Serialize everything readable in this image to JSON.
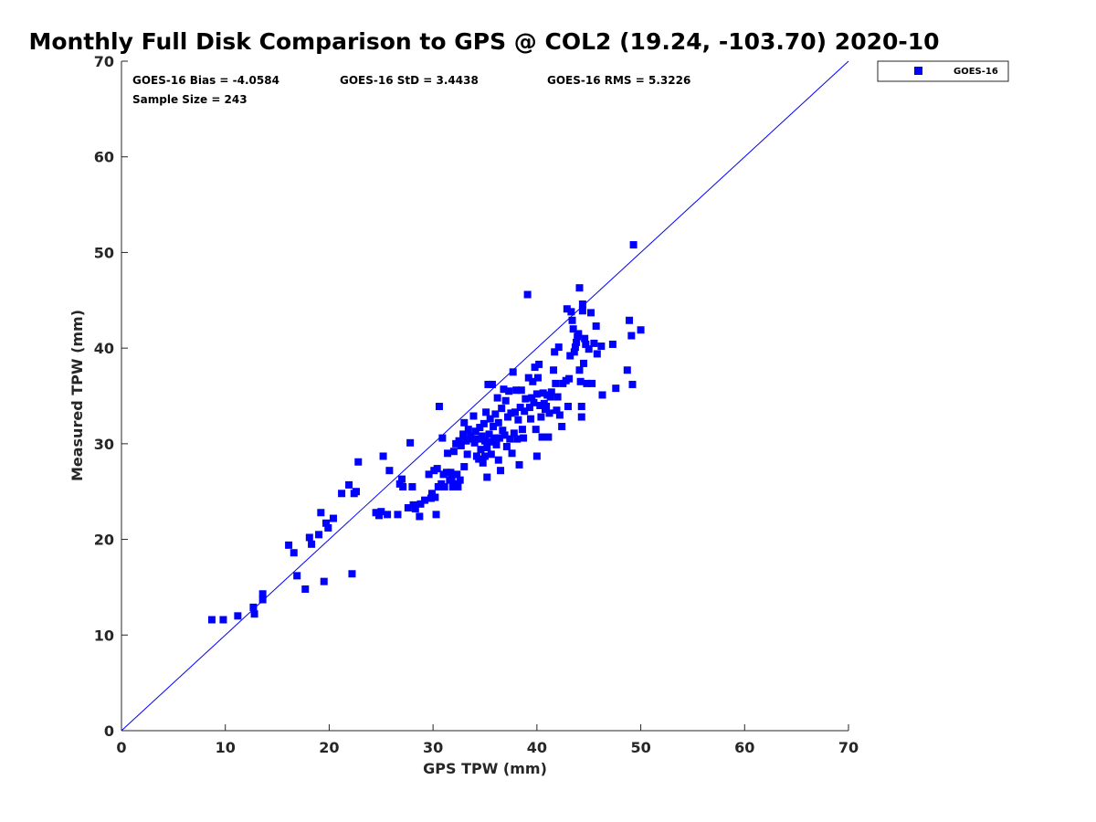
{
  "chart_data": {
    "type": "scatter",
    "title": "Monthly Full Disk Comparison to GPS @ COL2 (19.24, -103.70) 2020-10",
    "xlabel": "GPS TPW (mm)",
    "ylabel": "Measured TPW (mm)",
    "xlim": [
      0,
      70
    ],
    "ylim": [
      0,
      70
    ],
    "xticks": [
      0,
      10,
      20,
      30,
      40,
      50,
      60,
      70
    ],
    "yticks": [
      0,
      10,
      20,
      30,
      40,
      50,
      60,
      70
    ],
    "grid": false,
    "legend_position": "outside-top-right",
    "reference_line": {
      "x": [
        0,
        70
      ],
      "y": [
        0,
        70
      ],
      "color": "#0000ff"
    },
    "stats": {
      "bias": "GOES-16 Bias = -4.0584",
      "std": "GOES-16 StD = 3.4438",
      "rms": "GOES-16 RMS = 5.3226",
      "sample": "Sample Size = 243"
    },
    "series": [
      {
        "name": "GOES-16",
        "color": "#0000ff",
        "marker": "square",
        "points": [
          [
            8.7,
            11.6
          ],
          [
            9.8,
            11.6
          ],
          [
            11.2,
            12.0
          ],
          [
            12.7,
            12.9
          ],
          [
            12.8,
            12.2
          ],
          [
            13.6,
            13.7
          ],
          [
            13.6,
            14.3
          ],
          [
            16.1,
            19.4
          ],
          [
            16.6,
            18.6
          ],
          [
            16.9,
            16.2
          ],
          [
            17.7,
            14.8
          ],
          [
            18.1,
            20.2
          ],
          [
            18.3,
            19.5
          ],
          [
            19.0,
            20.5
          ],
          [
            19.2,
            22.8
          ],
          [
            19.5,
            15.6
          ],
          [
            19.7,
            21.7
          ],
          [
            19.9,
            21.2
          ],
          [
            20.4,
            22.2
          ],
          [
            21.2,
            24.8
          ],
          [
            21.9,
            25.7
          ],
          [
            22.2,
            16.4
          ],
          [
            22.4,
            24.8
          ],
          [
            22.6,
            25.0
          ],
          [
            22.8,
            28.1
          ],
          [
            24.5,
            22.8
          ],
          [
            24.8,
            22.5
          ],
          [
            25.0,
            22.9
          ],
          [
            25.2,
            28.7
          ],
          [
            25.6,
            22.6
          ],
          [
            25.8,
            27.2
          ],
          [
            26.6,
            22.6
          ],
          [
            26.8,
            25.8
          ],
          [
            27.0,
            26.3
          ],
          [
            27.1,
            25.5
          ],
          [
            27.6,
            23.3
          ],
          [
            27.8,
            30.1
          ],
          [
            28.0,
            25.5
          ],
          [
            28.1,
            23.6
          ],
          [
            28.3,
            23.2
          ],
          [
            28.7,
            22.4
          ],
          [
            28.8,
            23.7
          ],
          [
            29.2,
            24.1
          ],
          [
            29.6,
            26.8
          ],
          [
            29.8,
            24.3
          ],
          [
            29.9,
            24.8
          ],
          [
            30.1,
            27.2
          ],
          [
            30.2,
            24.4
          ],
          [
            30.3,
            22.6
          ],
          [
            30.4,
            27.4
          ],
          [
            30.5,
            25.5
          ],
          [
            30.6,
            33.9
          ],
          [
            30.8,
            25.8
          ],
          [
            30.9,
            30.6
          ],
          [
            31.0,
            26.8
          ],
          [
            31.1,
            25.5
          ],
          [
            31.3,
            27.0
          ],
          [
            31.4,
            29.0
          ],
          [
            31.6,
            26.2
          ],
          [
            31.7,
            27.0
          ],
          [
            31.8,
            26.5
          ],
          [
            31.9,
            25.5
          ],
          [
            32.0,
            29.2
          ],
          [
            32.1,
            25.8
          ],
          [
            32.2,
            30.0
          ],
          [
            32.3,
            26.8
          ],
          [
            32.4,
            25.5
          ],
          [
            32.5,
            30.3
          ],
          [
            32.6,
            26.2
          ],
          [
            32.7,
            29.8
          ],
          [
            32.9,
            31.0
          ],
          [
            33.0,
            32.2
          ],
          [
            33.0,
            27.6
          ],
          [
            33.2,
            30.3
          ],
          [
            33.3,
            28.9
          ],
          [
            33.4,
            31.5
          ],
          [
            33.6,
            30.8
          ],
          [
            33.7,
            30.5
          ],
          [
            33.9,
            32.9
          ],
          [
            34.0,
            30.1
          ],
          [
            34.1,
            31.3
          ],
          [
            34.2,
            28.7
          ],
          [
            34.3,
            30.5
          ],
          [
            34.4,
            28.4
          ],
          [
            34.5,
            31.7
          ],
          [
            34.6,
            29.4
          ],
          [
            34.7,
            30.8
          ],
          [
            34.8,
            28.0
          ],
          [
            34.9,
            32.1
          ],
          [
            35.0,
            30.3
          ],
          [
            35.0,
            28.7
          ],
          [
            35.1,
            33.3
          ],
          [
            35.2,
            29.6
          ],
          [
            35.2,
            26.5
          ],
          [
            35.3,
            36.2
          ],
          [
            35.4,
            31.0
          ],
          [
            35.5,
            32.6
          ],
          [
            35.6,
            28.9
          ],
          [
            35.6,
            30.2
          ],
          [
            35.7,
            36.2
          ],
          [
            35.8,
            31.8
          ],
          [
            35.9,
            30.6
          ],
          [
            36.0,
            33.1
          ],
          [
            36.1,
            29.9
          ],
          [
            36.2,
            34.8
          ],
          [
            36.3,
            28.3
          ],
          [
            36.3,
            32.2
          ],
          [
            36.4,
            30.6
          ],
          [
            36.5,
            27.2
          ],
          [
            36.6,
            33.7
          ],
          [
            36.7,
            31.4
          ],
          [
            36.8,
            35.7
          ],
          [
            36.9,
            30.9
          ],
          [
            37.0,
            34.5
          ],
          [
            37.1,
            29.7
          ],
          [
            37.2,
            32.8
          ],
          [
            37.3,
            35.5
          ],
          [
            37.4,
            30.5
          ],
          [
            37.5,
            33.2
          ],
          [
            37.6,
            29.0
          ],
          [
            37.7,
            37.5
          ],
          [
            37.8,
            31.1
          ],
          [
            37.9,
            33.3
          ],
          [
            38.0,
            35.6
          ],
          [
            38.1,
            30.5
          ],
          [
            38.2,
            32.5
          ],
          [
            38.3,
            27.8
          ],
          [
            38.4,
            33.8
          ],
          [
            38.5,
            35.6
          ],
          [
            38.6,
            31.5
          ],
          [
            38.7,
            30.6
          ],
          [
            38.8,
            33.4
          ],
          [
            38.9,
            34.7
          ],
          [
            39.1,
            45.6
          ],
          [
            39.2,
            36.9
          ],
          [
            39.3,
            33.8
          ],
          [
            39.4,
            32.6
          ],
          [
            39.5,
            34.8
          ],
          [
            39.6,
            36.5
          ],
          [
            39.7,
            34.3
          ],
          [
            39.8,
            38.0
          ],
          [
            39.9,
            31.5
          ],
          [
            40.0,
            28.7
          ],
          [
            40.0,
            35.2
          ],
          [
            40.1,
            36.9
          ],
          [
            40.2,
            38.3
          ],
          [
            40.3,
            34.0
          ],
          [
            40.4,
            32.8
          ],
          [
            40.5,
            30.7
          ],
          [
            40.6,
            35.3
          ],
          [
            40.7,
            34.2
          ],
          [
            40.8,
            33.6
          ],
          [
            40.9,
            33.9
          ],
          [
            41.0,
            35.1
          ],
          [
            41.1,
            30.7
          ],
          [
            41.2,
            33.2
          ],
          [
            41.3,
            34.9
          ],
          [
            41.4,
            35.4
          ],
          [
            41.6,
            37.7
          ],
          [
            41.7,
            39.6
          ],
          [
            41.8,
            36.3
          ],
          [
            41.9,
            33.5
          ],
          [
            42.0,
            34.9
          ],
          [
            42.1,
            40.1
          ],
          [
            42.2,
            33.0
          ],
          [
            42.4,
            31.8
          ],
          [
            42.5,
            36.3
          ],
          [
            42.8,
            36.6
          ],
          [
            42.9,
            44.1
          ],
          [
            43.0,
            33.9
          ],
          [
            43.1,
            36.8
          ],
          [
            43.2,
            39.2
          ],
          [
            43.3,
            43.8
          ],
          [
            43.4,
            42.9
          ],
          [
            43.5,
            42.0
          ],
          [
            43.6,
            39.6
          ],
          [
            43.7,
            40.1
          ],
          [
            43.8,
            40.6
          ],
          [
            43.9,
            41.2
          ],
          [
            44.0,
            41.5
          ],
          [
            44.1,
            46.3
          ],
          [
            44.1,
            37.7
          ],
          [
            44.2,
            36.5
          ],
          [
            44.3,
            33.9
          ],
          [
            44.3,
            32.8
          ],
          [
            44.4,
            44.6
          ],
          [
            44.4,
            43.9
          ],
          [
            44.5,
            38.4
          ],
          [
            44.6,
            41.0
          ],
          [
            44.7,
            40.4
          ],
          [
            44.8,
            36.3
          ],
          [
            45.0,
            39.9
          ],
          [
            45.2,
            43.7
          ],
          [
            45.3,
            36.3
          ],
          [
            45.5,
            40.5
          ],
          [
            45.7,
            42.3
          ],
          [
            45.8,
            39.4
          ],
          [
            46.2,
            40.2
          ],
          [
            46.3,
            35.1
          ],
          [
            47.3,
            40.4
          ],
          [
            47.6,
            35.8
          ],
          [
            48.7,
            37.7
          ],
          [
            48.9,
            42.9
          ],
          [
            49.1,
            41.3
          ],
          [
            49.2,
            36.2
          ],
          [
            49.3,
            50.8
          ],
          [
            50.0,
            41.9
          ]
        ]
      }
    ]
  }
}
